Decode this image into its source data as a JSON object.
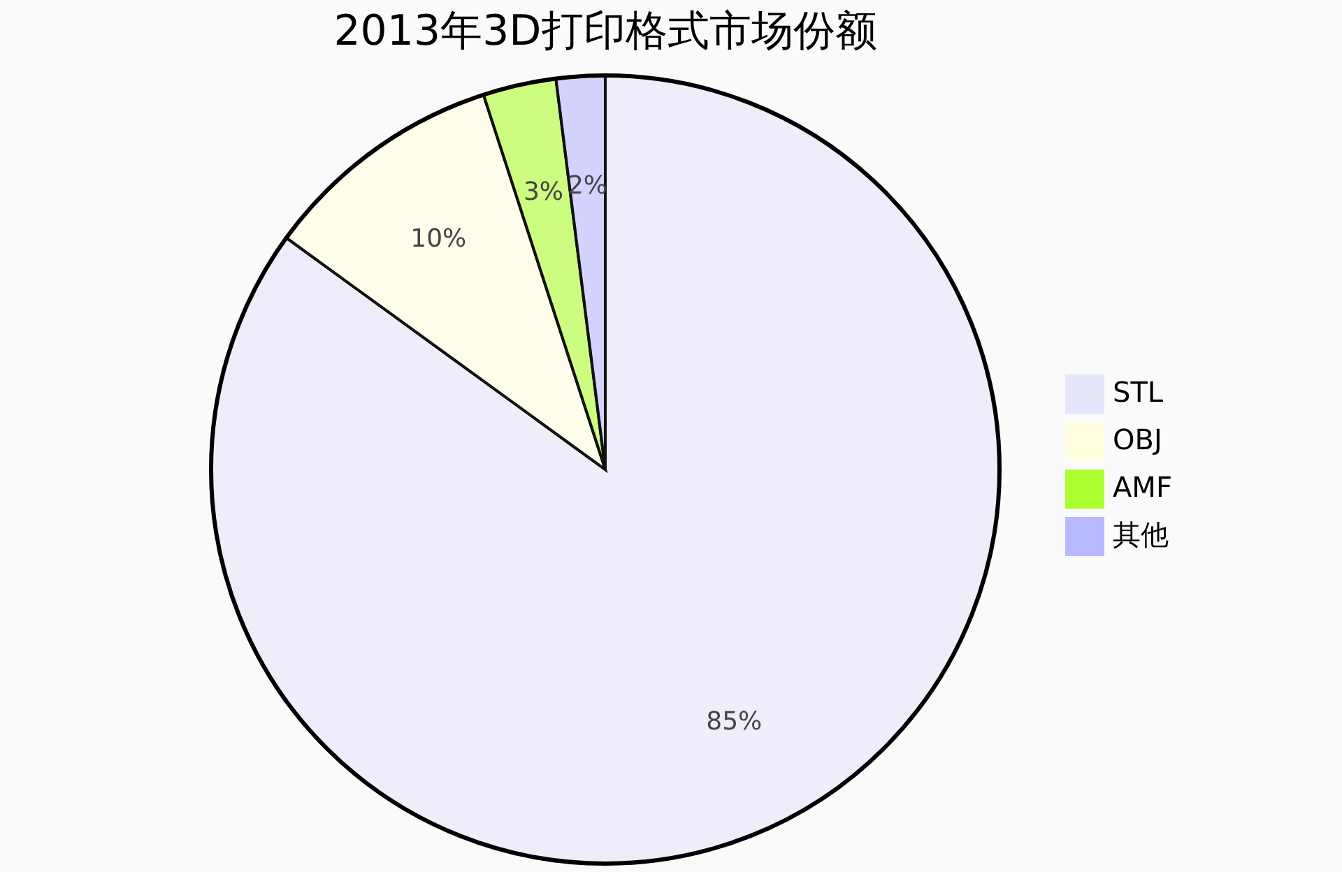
{
  "chart_data": {
    "type": "pie",
    "title": "2013年3D打印格式市场份额",
    "categories": [
      "STL",
      "OBJ",
      "AMF",
      "其他"
    ],
    "values": [
      85,
      10,
      3,
      2
    ],
    "value_labels": [
      "85%",
      "10%",
      "3%",
      "2%"
    ],
    "colors": [
      "#e6e6fa",
      "#ffffe0",
      "#adff2f",
      "#b9b9ff"
    ],
    "legend": "right"
  }
}
